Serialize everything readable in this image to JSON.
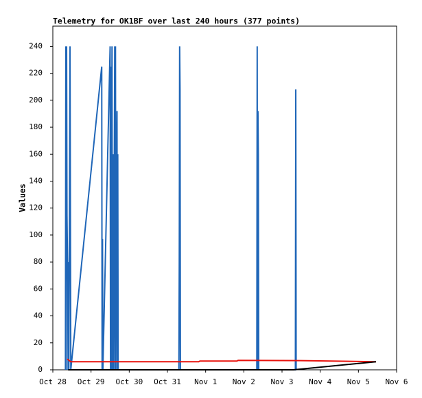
{
  "chart_data": {
    "type": "line",
    "title": "Telemetry for OK1BF over last 240 hours (377 points)",
    "y_label": "Values",
    "xlim": [
      0,
      9
    ],
    "ylim": [
      0,
      255
    ],
    "xticks": [
      {
        "value": 0,
        "label": "Oct 28"
      },
      {
        "value": 1,
        "label": "Oct 29"
      },
      {
        "value": 2,
        "label": "Oct 30"
      },
      {
        "value": 3,
        "label": "Oct 31"
      },
      {
        "value": 4,
        "label": "Nov 1"
      },
      {
        "value": 5,
        "label": "Nov 2"
      },
      {
        "value": 6,
        "label": "Nov 3"
      },
      {
        "value": 7,
        "label": "Nov 4"
      },
      {
        "value": 8,
        "label": "Nov 5"
      },
      {
        "value": 9,
        "label": "Nov 6"
      }
    ],
    "yticks": [
      0,
      20,
      40,
      60,
      80,
      100,
      120,
      140,
      160,
      180,
      200,
      220,
      240
    ],
    "series": [
      {
        "color": "#1f66b8",
        "x": [
          0.33,
          0.34,
          0.35,
          0.36,
          0.37,
          0.38,
          0.39,
          0.4,
          0.41,
          0.42,
          0.45,
          0.47,
          1.28,
          1.29,
          1.3,
          1.31,
          1.5,
          1.51,
          1.52,
          1.53,
          1.54,
          1.55,
          1.56,
          1.58,
          1.59,
          1.62,
          1.63,
          1.64,
          1.65,
          1.66,
          1.68,
          1.69,
          1.7,
          1.71,
          3.3,
          3.31,
          3.32,
          3.33,
          3.34,
          5.34,
          5.35,
          5.36,
          5.37,
          5.38,
          5.39,
          6.35,
          6.36,
          6.37
        ],
        "values": [
          0,
          240,
          0,
          240,
          115,
          90,
          65,
          0,
          80,
          0,
          240,
          0,
          225,
          0,
          97,
          0,
          240,
          0,
          225,
          0,
          160,
          240,
          0,
          160,
          0,
          240,
          0,
          240,
          0,
          88,
          192,
          0,
          160,
          0,
          0,
          80,
          240,
          208,
          0,
          0,
          240,
          0,
          192,
          160,
          0,
          0,
          208,
          0
        ]
      },
      {
        "color": "#e8120c",
        "x": [
          0.38,
          0.47,
          3.82,
          3.85,
          4.82,
          4.85,
          6.5,
          8.46
        ],
        "values": [
          8,
          6,
          6,
          6.5,
          6.5,
          7,
          6.8,
          6
        ]
      },
      {
        "color": "#000000",
        "x": [
          0.4,
          6.3,
          8.46
        ],
        "values": [
          0,
          0,
          6
        ]
      }
    ]
  }
}
